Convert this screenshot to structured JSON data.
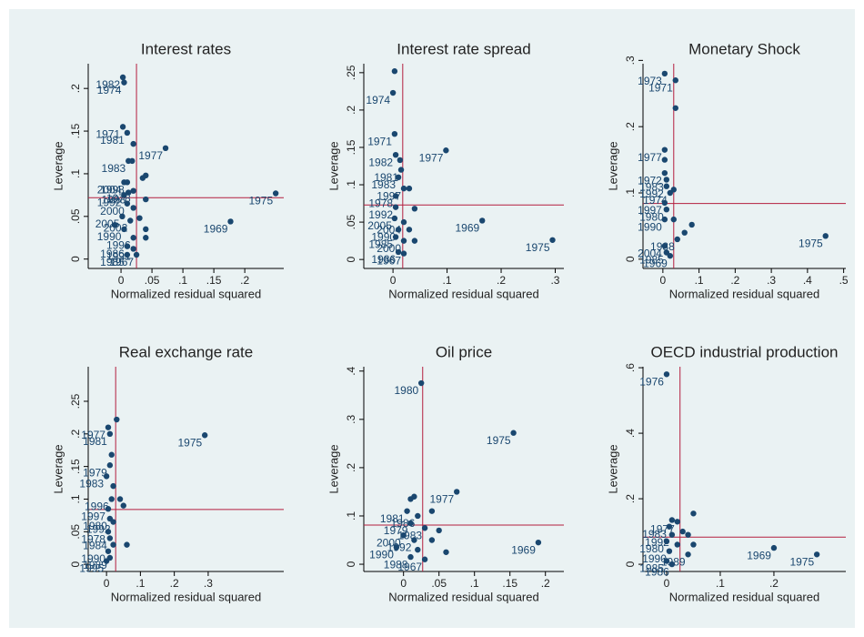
{
  "chart_data": [
    {
      "type": "scatter",
      "title": "Interest rates",
      "xlabel": "Normalized residual squared",
      "ylabel": "Leverage",
      "color": "#1a476f",
      "refline_color": "#b41e3e",
      "xlim": [
        -0.053,
        0.263
      ],
      "ylim": [
        -0.011,
        0.229
      ],
      "xticks": [
        0,
        {
          "value": 0.05,
          "label": ".05"
        },
        {
          "value": 0.1,
          "label": ".1"
        },
        {
          "value": 0.15,
          "label": ".15"
        },
        {
          "value": 0.2,
          "label": ".2"
        }
      ],
      "yticks": [
        0,
        {
          "value": 0.05,
          "label": ".05"
        },
        {
          "value": 0.1,
          "label": ".1"
        },
        {
          "value": 0.15,
          "label": ".15"
        },
        {
          "value": 0.2,
          "label": ".2"
        }
      ],
      "vline": 0.025,
      "hline": 0.072,
      "x": [
        0.003,
        0.005,
        0.003,
        0.01,
        0.02,
        0.072,
        0.012,
        0.018,
        0.04,
        0.035,
        0.005,
        0.01,
        0.02,
        0.012,
        0.005,
        0.04,
        0.01,
        0.02,
        0.002,
        0.015,
        0.03,
        -0.01,
        0.005,
        0.04,
        0.04,
        0.02,
        0.01,
        0.02,
        0.01,
        0.025,
        0.25,
        0.177
      ],
      "y": [
        0.213,
        0.207,
        0.155,
        0.148,
        0.135,
        0.13,
        0.115,
        0.115,
        0.098,
        0.095,
        0.09,
        0.09,
        0.08,
        0.078,
        0.075,
        0.07,
        0.065,
        0.06,
        0.05,
        0.045,
        0.048,
        0.04,
        0.035,
        0.035,
        0.025,
        0.025,
        0.015,
        0.012,
        0.005,
        0.005,
        0.077,
        0.044
      ],
      "point_labels": [
        "1982",
        "1974",
        "1971",
        "1981",
        null,
        "1977",
        "1983",
        null,
        null,
        null,
        "2004",
        "1998",
        "1978",
        "1993",
        "1992",
        null,
        "2000",
        null,
        "2005",
        "2002",
        null,
        null,
        "1990",
        null,
        null,
        "1996",
        "1986",
        "1991",
        "1985",
        "1967",
        "1975",
        "1969"
      ]
    },
    {
      "type": "scatter",
      "title": "Interest rate spread",
      "xlabel": "Normalized residual squared",
      "ylabel": "Leverage",
      "color": "#1a476f",
      "refline_color": "#b41e3e",
      "xlim": [
        -0.054,
        0.316
      ],
      "ylim": [
        -0.012,
        0.262
      ],
      "xticks": [
        0,
        {
          "value": 0.1,
          "label": ".1"
        },
        {
          "value": 0.2,
          "label": ".2"
        },
        {
          "value": 0.3,
          "label": ".3"
        }
      ],
      "yticks": [
        0,
        {
          "value": 0.05,
          "label": ".05"
        },
        {
          "value": 0.1,
          "label": ".1"
        },
        {
          "value": 0.15,
          "label": ".15"
        },
        {
          "value": 0.2,
          "label": ".2"
        },
        {
          "value": 0.25,
          "label": ".25"
        }
      ],
      "vline": 0.018,
      "hline": 0.073,
      "x": [
        0.003,
        0.0,
        0.003,
        0.005,
        0.013,
        0.098,
        0.015,
        0.01,
        0.02,
        0.03,
        0.005,
        0.04,
        0.005,
        0.003,
        0.02,
        0.01,
        0.03,
        0.005,
        0.02,
        0.04,
        0.01,
        0.02,
        0.165,
        0.295
      ],
      "y": [
        0.252,
        0.223,
        0.168,
        0.14,
        0.133,
        0.146,
        0.12,
        0.11,
        0.095,
        0.095,
        0.085,
        0.068,
        0.07,
        0.055,
        0.05,
        0.04,
        0.04,
        0.03,
        0.025,
        0.025,
        0.01,
        0.008,
        0.052,
        0.026
      ],
      "point_labels": [
        null,
        "1974",
        "1971",
        "1982",
        null,
        "1977",
        "1981",
        "1983",
        "1997",
        null,
        "1978",
        null,
        "1992",
        "2005",
        "2004",
        "1990",
        null,
        "1985",
        "2000",
        null,
        "1986",
        "1967",
        "1969",
        "1975"
      ]
    },
    {
      "type": "scatter",
      "title": "Monetary Shock",
      "xlabel": "Normalized residual squared",
      "ylabel": "Leverage",
      "color": "#1a476f",
      "refline_color": "#b41e3e",
      "xlim": [
        -0.055,
        0.506
      ],
      "ylim": [
        -0.014,
        0.295
      ],
      "xticks": [
        0,
        {
          "value": 0.1,
          "label": ".1"
        },
        {
          "value": 0.2,
          "label": ".2"
        },
        {
          "value": 0.3,
          "label": ".3"
        },
        {
          "value": 0.4,
          "label": ".4"
        },
        {
          "value": 0.5,
          "label": ".5"
        }
      ],
      "yticks": [
        0,
        {
          "value": 0.1,
          "label": ".1"
        },
        {
          "value": 0.2,
          "label": ".2"
        },
        {
          "value": 0.3,
          "label": ".3"
        }
      ],
      "vline": 0.03,
      "hline": 0.084,
      "x": [
        0.005,
        0.035,
        0.035,
        0.005,
        0.005,
        0.005,
        0.01,
        0.01,
        0.02,
        0.03,
        0.005,
        0.01,
        0.005,
        0.03,
        0.08,
        0.06,
        0.04,
        0.005,
        0.01,
        0.02,
        0.45
      ],
      "y": [
        0.28,
        0.27,
        0.228,
        0.165,
        0.15,
        0.13,
        0.12,
        0.11,
        0.1,
        0.105,
        0.085,
        0.075,
        0.06,
        0.06,
        0.052,
        0.04,
        0.03,
        0.02,
        0.01,
        0.005,
        0.035
      ],
      "point_labels": [
        "1973",
        "1971",
        null,
        "1977",
        null,
        "1972",
        "1983",
        "1992",
        "1974",
        null,
        "1997",
        "1980",
        "1990",
        null,
        null,
        null,
        "1988",
        "2004",
        "1985",
        "1969",
        "1975"
      ]
    },
    {
      "type": "scatter",
      "title": "Real exchange rate",
      "xlabel": "Normalized residual squared",
      "ylabel": "Leverage",
      "color": "#1a476f",
      "refline_color": "#b41e3e",
      "xlim": [
        -0.054,
        0.523
      ],
      "ylim": [
        -0.011,
        0.303
      ],
      "xticks": [
        0,
        {
          "value": 0.1,
          "label": ".1"
        },
        {
          "value": 0.2,
          "label": ".2"
        },
        {
          "value": 0.3,
          "label": ".3"
        }
      ],
      "yticks": [
        0,
        {
          "value": 0.05,
          "label": ".05"
        },
        {
          "value": 0.1,
          "label": ".1"
        },
        {
          "value": 0.15,
          "label": ".15"
        },
        {
          "value": 0.2,
          "label": ".2"
        },
        {
          "value": 0.25,
          "label": ".25"
        }
      ],
      "vline": 0.027,
      "hline": 0.084,
      "x": [
        0.03,
        0.005,
        0.29,
        0.01,
        0.015,
        0.01,
        0.0,
        0.02,
        0.015,
        0.04,
        0.05,
        0.005,
        0.01,
        0.02,
        0.005,
        0.01,
        0.02,
        0.06,
        0.005,
        0.01,
        0.0
      ],
      "y": [
        0.222,
        0.21,
        0.198,
        0.2,
        0.168,
        0.152,
        0.135,
        0.12,
        0.1,
        0.1,
        0.09,
        0.085,
        0.07,
        0.065,
        0.05,
        0.04,
        0.03,
        0.03,
        0.02,
        0.01,
        0.005
      ],
      "point_labels": [
        null,
        "1977",
        "1975",
        "1981",
        null,
        "1979",
        "1983",
        null,
        "1996",
        null,
        null,
        "1997",
        "1980",
        "1992",
        "1978",
        "1984",
        null,
        null,
        "1990",
        "1989",
        "1995"
      ]
    },
    {
      "type": "scatter",
      "title": "Oil price",
      "xlabel": "Normalized residual squared",
      "ylabel": "Leverage",
      "color": "#1a476f",
      "refline_color": "#b41e3e",
      "xlim": [
        -0.056,
        0.226
      ],
      "ylim": [
        -0.015,
        0.409
      ],
      "xticks": [
        0,
        {
          "value": 0.05,
          "label": ".05"
        },
        {
          "value": 0.1,
          "label": ".1"
        },
        {
          "value": 0.15,
          "label": ".15"
        },
        {
          "value": 0.2,
          "label": ".2"
        }
      ],
      "yticks": [
        0,
        {
          "value": 0.1,
          "label": ".1"
        },
        {
          "value": 0.2,
          "label": ".2"
        },
        {
          "value": 0.3,
          "label": ".3"
        },
        {
          "value": 0.4,
          "label": ".4"
        }
      ],
      "vline": 0.027,
      "hline": 0.081,
      "x": [
        0.025,
        0.155,
        0.075,
        0.01,
        0.015,
        0.005,
        0.02,
        0.04,
        0.01,
        0.03,
        0.05,
        0.0,
        0.015,
        0.04,
        -0.01,
        0.02,
        0.06,
        0.01,
        0.03,
        0.19
      ],
      "y": [
        0.375,
        0.272,
        0.15,
        0.135,
        0.14,
        0.11,
        0.1,
        0.11,
        0.085,
        0.075,
        0.07,
        0.06,
        0.05,
        0.05,
        0.035,
        0.03,
        0.025,
        0.015,
        0.01,
        0.045
      ],
      "point_labels": [
        "1980",
        "1975",
        "1977",
        null,
        null,
        "1981",
        "1986",
        null,
        "1979",
        "1983",
        null,
        "2000",
        "1992",
        null,
        "1990",
        null,
        null,
        "1988",
        "1967",
        "1969"
      ]
    },
    {
      "type": "scatter",
      "title": "OECD industrial production",
      "xlabel": "Normalized residual squared",
      "ylabel": "Leverage",
      "color": "#1a476f",
      "refline_color": "#b41e3e",
      "xlim": [
        -0.044,
        0.334
      ],
      "ylim": [
        -0.022,
        0.603
      ],
      "xticks": [
        0,
        {
          "value": 0.1,
          "label": ".1"
        },
        {
          "value": 0.2,
          "label": ".2"
        }
      ],
      "yticks": [
        0,
        {
          "value": 0.2,
          "label": ".2"
        },
        {
          "value": 0.4,
          "label": ".4"
        },
        {
          "value": 0.6,
          "label": ".6"
        }
      ],
      "vline": 0.025,
      "hline": 0.083,
      "x": [
        0.0,
        0.05,
        0.01,
        0.02,
        0.005,
        0.03,
        0.04,
        0.01,
        0.0,
        0.02,
        0.05,
        0.005,
        0.04,
        0.0,
        0.01,
        0.2,
        0.28
      ],
      "y": [
        0.58,
        0.155,
        0.135,
        0.13,
        0.115,
        0.1,
        0.09,
        0.09,
        0.07,
        0.06,
        0.06,
        0.04,
        0.03,
        0.01,
        0.0,
        0.05,
        0.03
      ],
      "point_labels": [
        "1976",
        null,
        null,
        "1977",
        "1983",
        null,
        null,
        "1992",
        "1980",
        null,
        null,
        "1990",
        "1989",
        "1985",
        "1986",
        "1969",
        "1975"
      ]
    }
  ]
}
